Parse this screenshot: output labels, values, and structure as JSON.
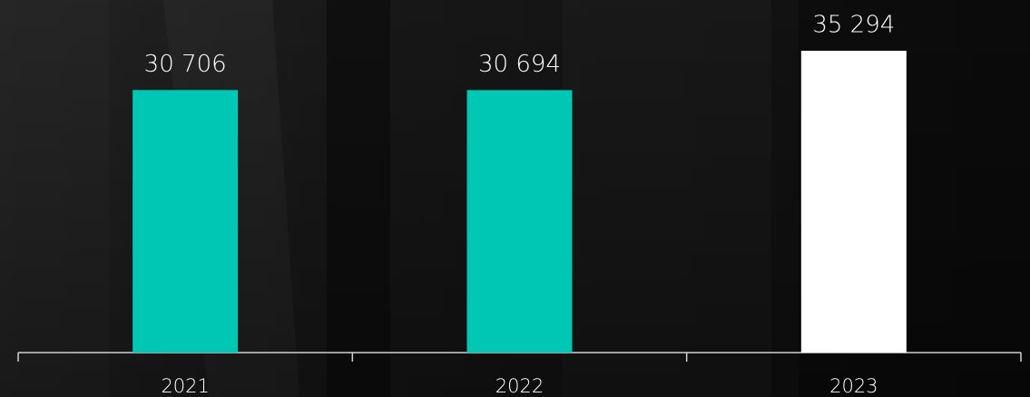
{
  "chart_data": {
    "type": "bar",
    "categories": [
      "2021",
      "2022",
      "2023"
    ],
    "values": [
      30706,
      30694,
      35294
    ],
    "value_labels": [
      "30 706",
      "30 694",
      "35 294"
    ],
    "colors": [
      "#00c6b4",
      "#00c6b4",
      "#ffffff"
    ]
  }
}
